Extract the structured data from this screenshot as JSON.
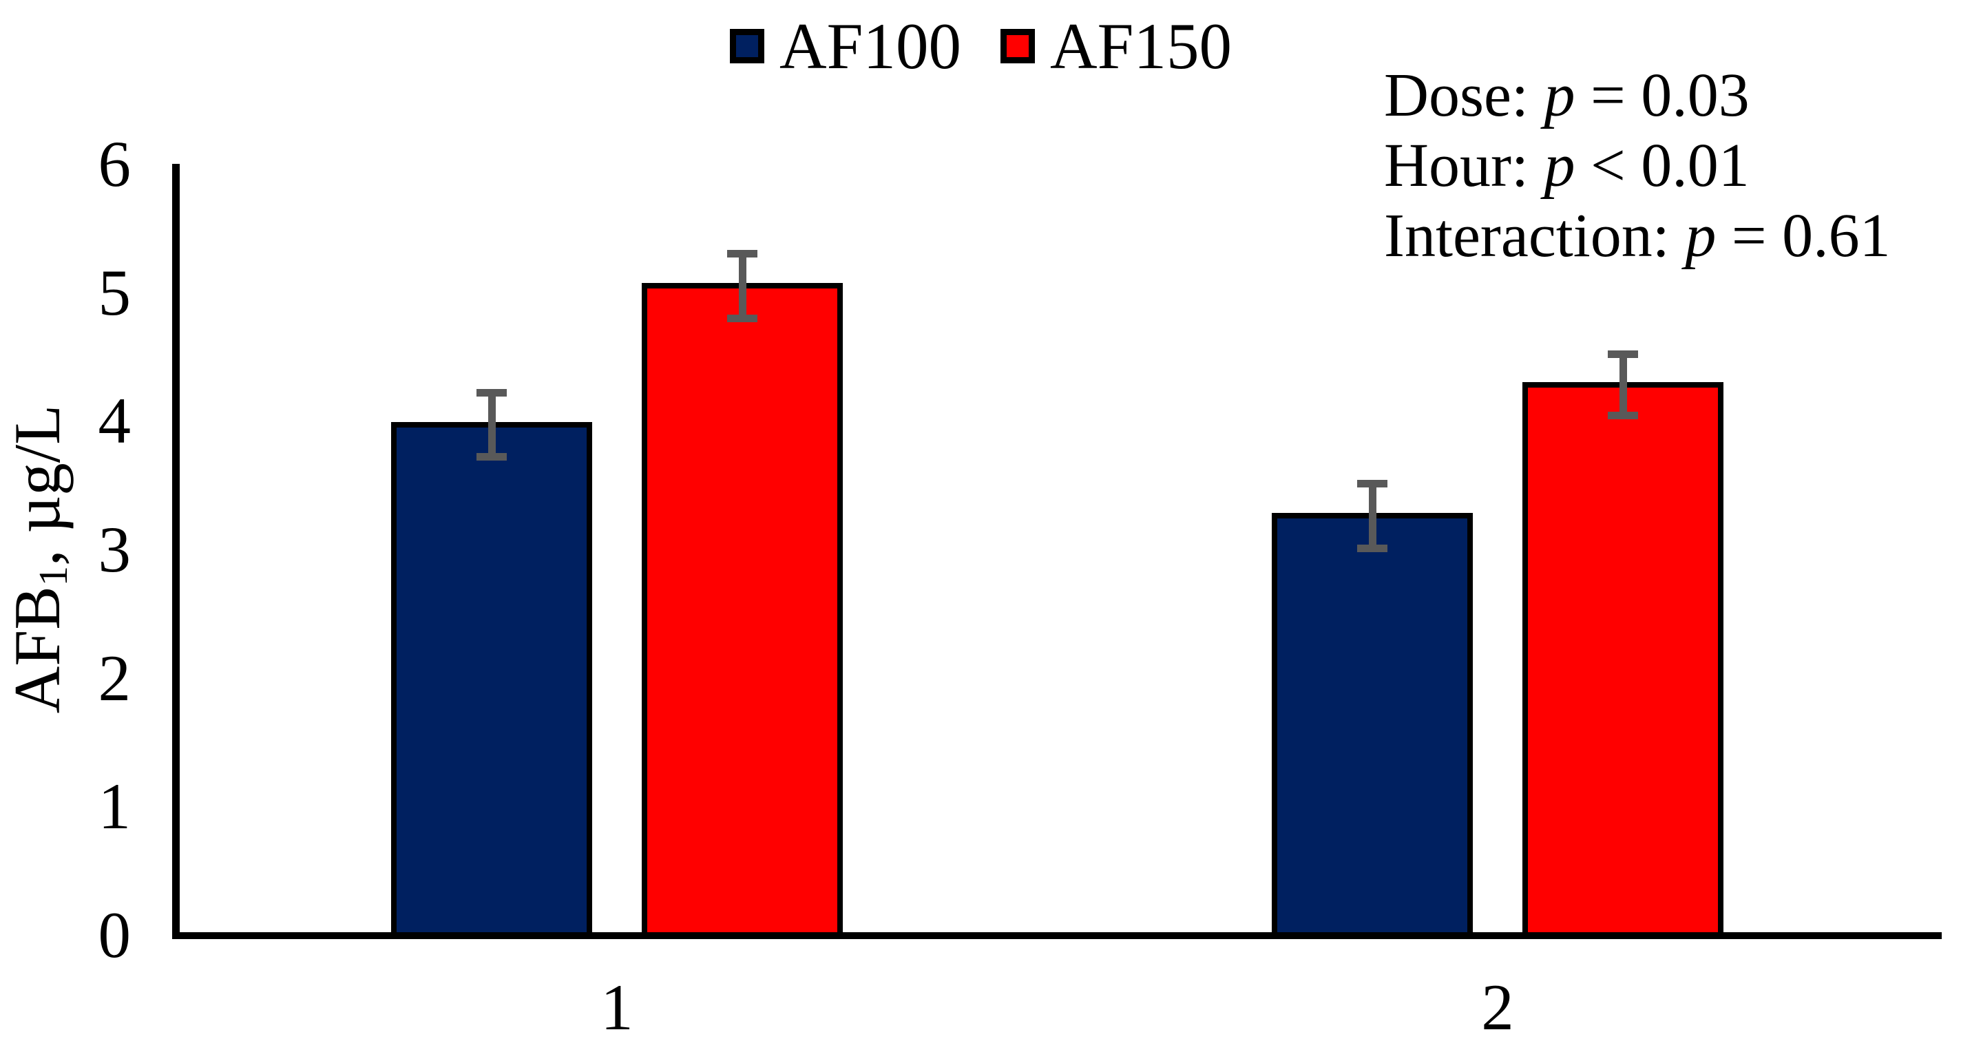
{
  "chart_data": {
    "type": "bar",
    "title": "",
    "categories": [
      "1",
      "2"
    ],
    "series": [
      {
        "name": "AF100",
        "color": "#002060",
        "values": [
          3.97,
          3.26
        ],
        "errors": [
          0.25,
          0.25
        ]
      },
      {
        "name": "AF150",
        "color": "#FF0000",
        "values": [
          5.05,
          4.28
        ],
        "errors": [
          0.25,
          0.24
        ]
      }
    ],
    "ylabel": {
      "text": "AFB1, µg/L",
      "prefix": "AFB",
      "subscript": "1",
      "suffix": ", µg/L"
    },
    "xlabel": "",
    "ylim": [
      0,
      6
    ],
    "yticks": [
      0,
      1,
      2,
      3,
      4,
      5,
      6
    ],
    "grid": false,
    "legend_position": "top-center",
    "error_bars": true,
    "colors": {
      "af100": "#002060",
      "af150": "#FF0000",
      "error_bar": "#595959",
      "axis": "#000000",
      "background": "#FFFFFF"
    },
    "annotations": [
      {
        "pre": "Dose: ",
        "p": "p",
        "post": " = 0.03"
      },
      {
        "pre": "Hour: ",
        "p": "p",
        "post": " < 0.01"
      },
      {
        "pre": "Interaction: ",
        "p": "p",
        "post": " = 0.61"
      }
    ]
  }
}
